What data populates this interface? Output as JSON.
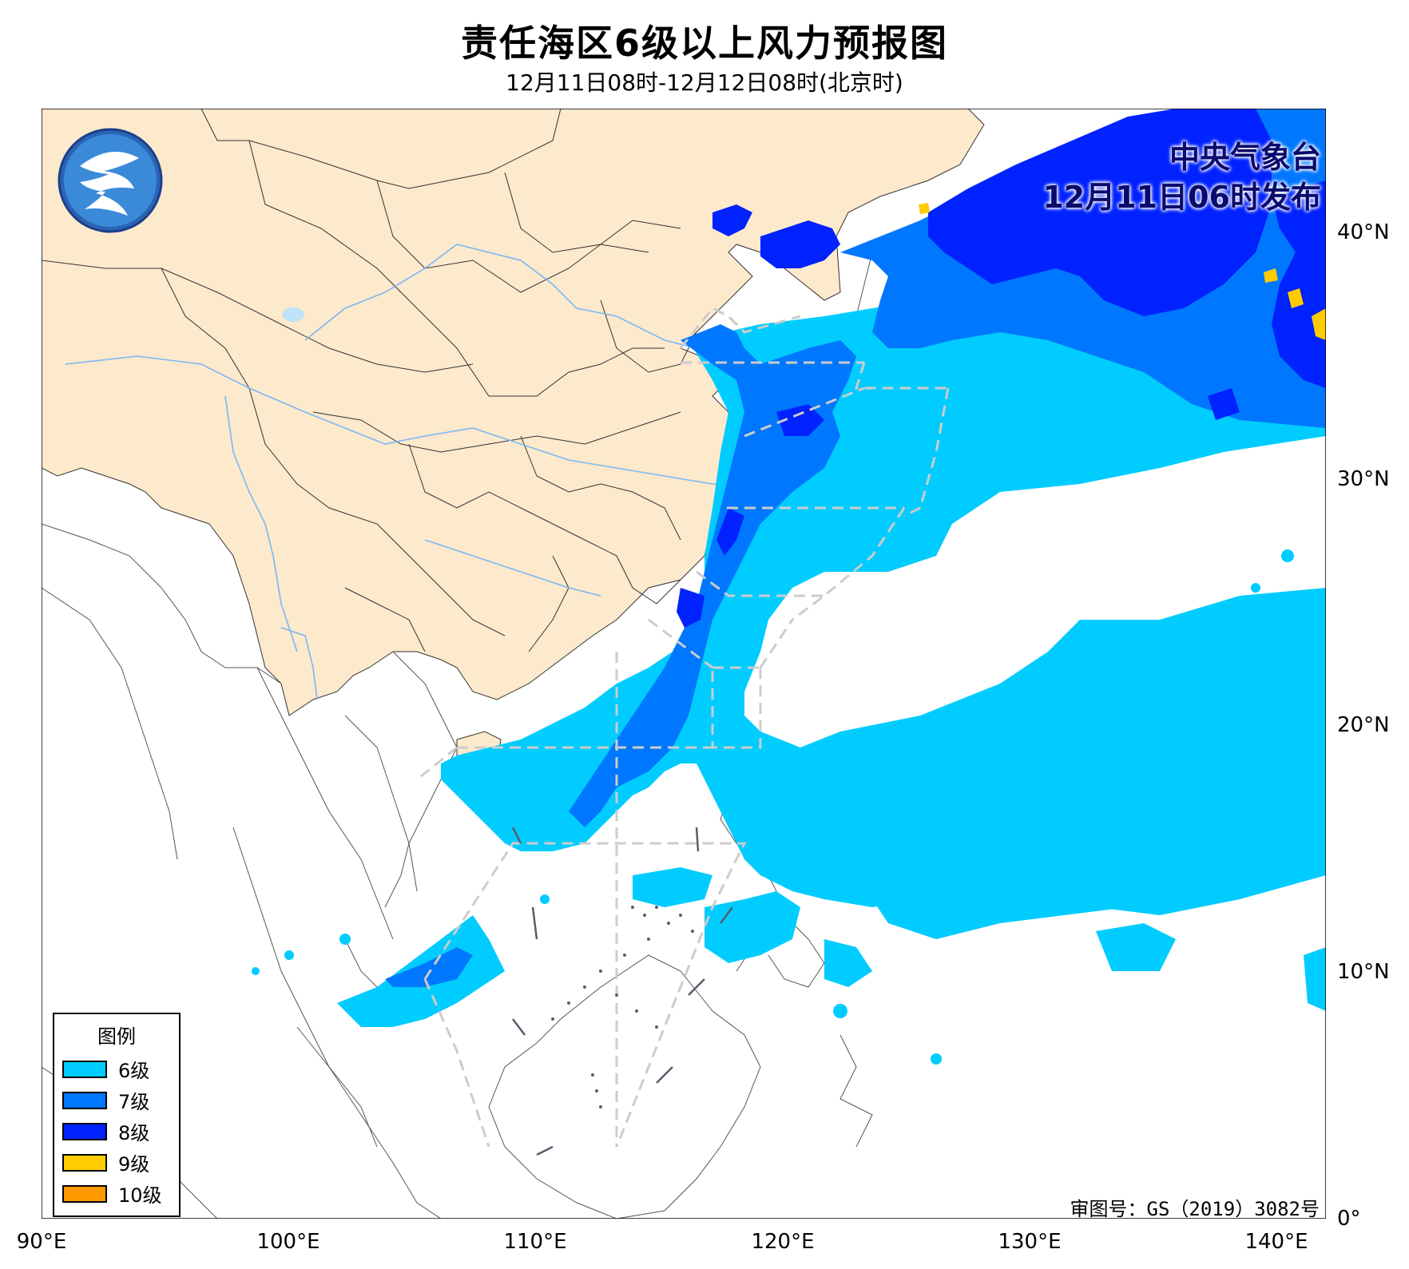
{
  "title": "责任海区6级以上风力预报图",
  "subtitle": "12月11日08时-12月12日08时(北京时)",
  "issuer": {
    "org": "中央气象台",
    "issued": "12月11日06时发布"
  },
  "approval": "审图号：GS（2019）3082号",
  "legend": {
    "title": "图例",
    "items": [
      {
        "label": "6级",
        "color": "#00ccff"
      },
      {
        "label": "7级",
        "color": "#0077ff"
      },
      {
        "label": "8级",
        "color": "#0022ff"
      },
      {
        "label": "9级",
        "color": "#ffcc00"
      },
      {
        "label": "10级",
        "color": "#ff9900"
      }
    ]
  },
  "axes": {
    "lon": [
      "90°E",
      "100°E",
      "110°E",
      "120°E",
      "130°E",
      "140°E"
    ],
    "lat": [
      "0°",
      "10°N",
      "20°N",
      "30°N",
      "40°N"
    ],
    "lon_range": [
      90,
      142
    ],
    "lat_range": [
      0,
      45
    ]
  },
  "colors": {
    "china_land": "#fde9cc",
    "river": "#7ab8f5",
    "lake": "#bfe3f7",
    "boundary": "#333333",
    "forecast_zone_line": "#cccccc"
  }
}
